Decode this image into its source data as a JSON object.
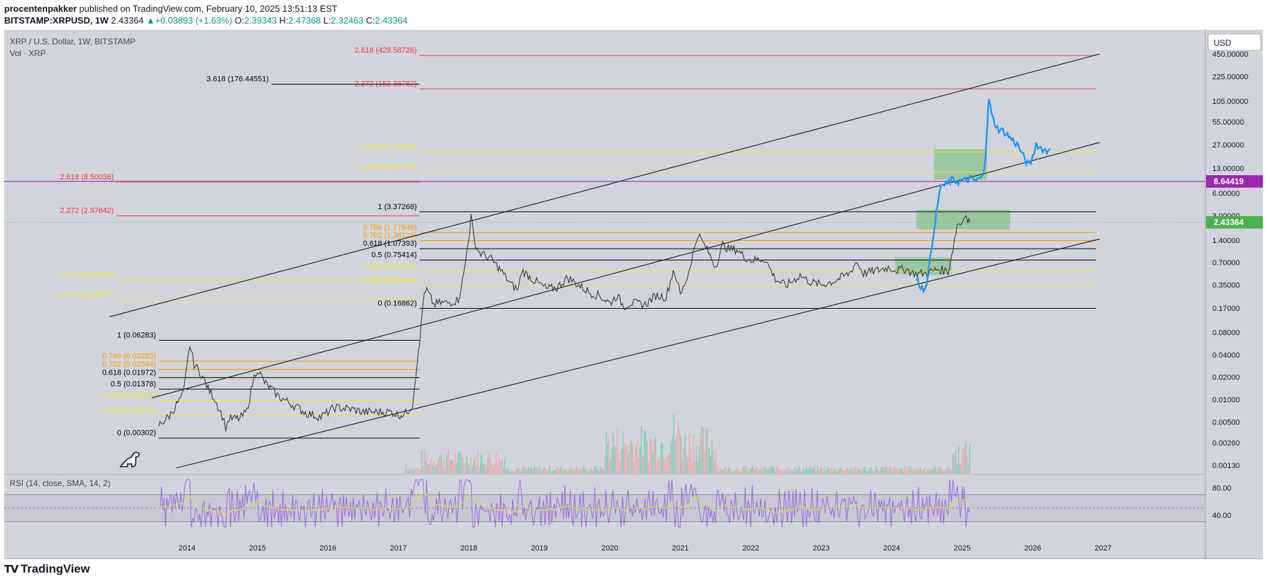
{
  "header": {
    "author": "procentenpakker",
    "published_text": "published on TradingView.com, February 10, 2025 13:51:13 EST",
    "symbol": "BITSTAMP:XRPUSD, 1W",
    "last": "2.43364",
    "change": "▲+0.03893 (+1.63%)",
    "o_label": "O:",
    "o": "2.39343",
    "h_label": "H:",
    "h": "2.47368",
    "l_label": "L:",
    "l": "2.32463",
    "c_label": "C:",
    "c": "2.43364"
  },
  "legend": {
    "title": "XRP / U.S. Dollar, 1W, BITSTAMP",
    "vol": "Vol · XRP",
    "rsi": "RSI (14, close, SMA, 14, 2)"
  },
  "currency_button": "USD",
  "footer": {
    "brand": "TradingView"
  },
  "colors": {
    "background": "#d1d4dc",
    "candle": "#3a3a3a",
    "projection": "#2196f3",
    "red_fib": "#f23645",
    "orange_fib": "#ff9800",
    "yellow_fib": "#f5e63c",
    "box": "#8ac28d",
    "rsi": "#9c6ade",
    "rsi_ma": "#e0e03a",
    "price_badge": "#4caf50",
    "level_badge": "#9c27b0"
  },
  "chart_data": {
    "type": "candlestick",
    "scale": "log",
    "timeframe": "1W",
    "x_ticks": [
      "2014",
      "2015",
      "2016",
      "2017",
      "2018",
      "2019",
      "2020",
      "2021",
      "2022",
      "2023",
      "2024",
      "2025",
      "2026",
      "2027"
    ],
    "y_ticks": [
      "450.00000",
      "225.00000",
      "105.00000",
      "55.00000",
      "27.00000",
      "13.00000",
      "6.00000",
      "3.00000",
      "1.40000",
      "0.70000",
      "0.35000",
      "0.17000",
      "0.08000",
      "0.04000",
      "0.02000",
      "0.01000",
      "0.00500",
      "0.00260",
      "0.00130"
    ],
    "last_price_label": "2.43364",
    "level_label": "8.64419",
    "price_path": [
      [
        2013.6,
        0.0045
      ],
      [
        2013.75,
        0.006
      ],
      [
        2013.85,
        0.0085
      ],
      [
        2013.95,
        0.012
      ],
      [
        2014.0,
        0.028
      ],
      [
        2014.04,
        0.055
      ],
      [
        2014.1,
        0.03
      ],
      [
        2014.2,
        0.022
      ],
      [
        2014.3,
        0.014
      ],
      [
        2014.4,
        0.01
      ],
      [
        2014.5,
        0.006
      ],
      [
        2014.55,
        0.0042
      ],
      [
        2014.6,
        0.0055
      ],
      [
        2014.75,
        0.0055
      ],
      [
        2014.85,
        0.007
      ],
      [
        2014.95,
        0.02
      ],
      [
        2015.0,
        0.026
      ],
      [
        2015.1,
        0.017
      ],
      [
        2015.3,
        0.011
      ],
      [
        2015.5,
        0.0085
      ],
      [
        2015.7,
        0.0065
      ],
      [
        2015.9,
        0.0058
      ],
      [
        2016.1,
        0.0078
      ],
      [
        2016.3,
        0.0075
      ],
      [
        2016.5,
        0.0068
      ],
      [
        2016.7,
        0.0068
      ],
      [
        2016.9,
        0.0068
      ],
      [
        2017.0,
        0.0062
      ],
      [
        2017.1,
        0.0065
      ],
      [
        2017.2,
        0.0085
      ],
      [
        2017.24,
        0.02
      ],
      [
        2017.3,
        0.055
      ],
      [
        2017.35,
        0.22
      ],
      [
        2017.4,
        0.3
      ],
      [
        2017.5,
        0.19
      ],
      [
        2017.6,
        0.2
      ],
      [
        2017.7,
        0.2
      ],
      [
        2017.85,
        0.22
      ],
      [
        2017.93,
        0.5
      ],
      [
        2018.0,
        1.6
      ],
      [
        2018.03,
        2.9
      ],
      [
        2018.08,
        1.3
      ],
      [
        2018.15,
        0.95
      ],
      [
        2018.3,
        0.8
      ],
      [
        2018.45,
        0.55
      ],
      [
        2018.6,
        0.35
      ],
      [
        2018.7,
        0.3
      ],
      [
        2018.75,
        0.55
      ],
      [
        2018.9,
        0.42
      ],
      [
        2019.1,
        0.31
      ],
      [
        2019.25,
        0.32
      ],
      [
        2019.4,
        0.44
      ],
      [
        2019.5,
        0.38
      ],
      [
        2019.7,
        0.28
      ],
      [
        2019.85,
        0.25
      ],
      [
        2020.0,
        0.2
      ],
      [
        2020.1,
        0.25
      ],
      [
        2020.2,
        0.18
      ],
      [
        2020.3,
        0.2
      ],
      [
        2020.5,
        0.19
      ],
      [
        2020.65,
        0.25
      ],
      [
        2020.8,
        0.24
      ],
      [
        2020.9,
        0.55
      ],
      [
        2020.95,
        0.42
      ],
      [
        2021.0,
        0.25
      ],
      [
        2021.1,
        0.45
      ],
      [
        2021.25,
        1.7
      ],
      [
        2021.3,
        1.4
      ],
      [
        2021.4,
        0.95
      ],
      [
        2021.5,
        0.62
      ],
      [
        2021.6,
        1.2
      ],
      [
        2021.7,
        1.05
      ],
      [
        2021.8,
        1.05
      ],
      [
        2021.9,
        0.85
      ],
      [
        2022.0,
        0.75
      ],
      [
        2022.2,
        0.78
      ],
      [
        2022.35,
        0.42
      ],
      [
        2022.5,
        0.34
      ],
      [
        2022.7,
        0.47
      ],
      [
        2022.85,
        0.38
      ],
      [
        2023.0,
        0.35
      ],
      [
        2023.2,
        0.4
      ],
      [
        2023.4,
        0.5
      ],
      [
        2023.5,
        0.72
      ],
      [
        2023.6,
        0.5
      ],
      [
        2023.8,
        0.55
      ],
      [
        2023.95,
        0.6
      ],
      [
        2024.1,
        0.55
      ],
      [
        2024.2,
        0.58
      ],
      [
        2024.3,
        0.5
      ],
      [
        2024.5,
        0.5
      ],
      [
        2024.65,
        0.57
      ],
      [
        2024.8,
        0.53
      ],
      [
        2024.87,
        1.1
      ],
      [
        2024.93,
        2.3
      ],
      [
        2025.0,
        2.4
      ],
      [
        2025.03,
        3.2
      ],
      [
        2025.08,
        2.6
      ],
      [
        2025.11,
        2.43
      ]
    ],
    "projection_path": [
      [
        2024.35,
        0.42
      ],
      [
        2024.45,
        0.3
      ],
      [
        2024.5,
        0.4
      ],
      [
        2024.55,
        0.8
      ],
      [
        2024.6,
        2.0
      ],
      [
        2024.65,
        4.0
      ],
      [
        2024.7,
        8.0
      ],
      [
        2024.75,
        7.5
      ],
      [
        2024.85,
        9.0
      ],
      [
        2025.0,
        8.5
      ],
      [
        2025.1,
        9.5
      ],
      [
        2025.2,
        8.8
      ],
      [
        2025.3,
        10.0
      ],
      [
        2025.33,
        20
      ],
      [
        2025.36,
        60
      ],
      [
        2025.38,
        115
      ],
      [
        2025.42,
        65
      ],
      [
        2025.5,
        45
      ],
      [
        2025.6,
        40
      ],
      [
        2025.7,
        32
      ],
      [
        2025.8,
        26
      ],
      [
        2025.85,
        20
      ],
      [
        2025.95,
        14
      ],
      [
        2026.0,
        18
      ],
      [
        2026.05,
        28
      ],
      [
        2026.1,
        25
      ],
      [
        2026.2,
        22
      ],
      [
        2026.25,
        24
      ]
    ],
    "fib_sets": [
      {
        "x0": 2013.6,
        "x1": 2017.3,
        "levels": [
          {
            "label": "1 (0.06283)",
            "v": 0.06283,
            "color": "#000000"
          },
          {
            "label": "0.786 (0.03283)",
            "v": 0.03283,
            "color": "#ff9800"
          },
          {
            "label": "0.702 (0.02544)",
            "v": 0.02544,
            "color": "#ff9800"
          },
          {
            "label": "0.618 (0.01972)",
            "v": 0.01972,
            "color": "#000000"
          },
          {
            "label": "0.5 (0.01378)",
            "v": 0.01378,
            "color": "#000000"
          },
          {
            "label": "0.382 (0.00963)",
            "v": 0.00963,
            "color": "#f5e63c"
          },
          {
            "label": "0.236 (0.00618)",
            "v": 0.00618,
            "color": "#f5e63c"
          },
          {
            "label": "0 (0.00302)",
            "v": 0.00302,
            "color": "#000000"
          }
        ]
      },
      {
        "x0": 2017.3,
        "x1": 2026.9,
        "levels": [
          {
            "label": "1 (3.37268)",
            "v": 3.37268,
            "color": "#000000"
          },
          {
            "label": "0.786 (1.77645)",
            "v": 1.77645,
            "color": "#ff9800"
          },
          {
            "label": "0.702 (1.38123)",
            "v": 1.38123,
            "color": "#ff9800"
          },
          {
            "label": "0.618 (1.07393)",
            "v": 1.07393,
            "color": "#000000"
          },
          {
            "label": "0.5 (0.75414)",
            "v": 0.75414,
            "color": "#000000"
          },
          {
            "label": "0.382 (0.52958)",
            "v": 0.52958,
            "color": "#f5e63c"
          },
          {
            "label": "0.236 (0.34196)",
            "v": 0.34196,
            "color": "#f5e63c"
          },
          {
            "label": "0 (0.16862)",
            "v": 0.16862,
            "color": "#000000"
          }
        ]
      },
      {
        "x0": 2017.3,
        "x1": 2026.9,
        "levels": [
          {
            "label": "2.618 (429.58726)",
            "v": 429.58726,
            "color": "#f23645"
          },
          {
            "label": "2.272 (152.36782)",
            "v": 152.36782,
            "color": "#f23645"
          },
          {
            "label": "1.618 (21.47910)",
            "v": 21.4791,
            "color": "#f5e63c"
          },
          {
            "label": "1.414 (11.65748)",
            "v": 11.65748,
            "color": "#f5e63c"
          }
        ]
      },
      {
        "x0": 2015.2,
        "x1": 2017.3,
        "levels": [
          {
            "label": "3.618 (176.44551)",
            "v": 176.44551,
            "color": "#000000"
          }
        ]
      },
      {
        "x0": 2013.0,
        "x1": 2017.3,
        "levels": [
          {
            "label": "2.618 (8.50036)",
            "v": 8.50036,
            "color": "#f23645"
          },
          {
            "label": "2.272 (2.97642)",
            "v": 2.97642,
            "color": "#f23645"
          },
          {
            "label": "1.618 (0.40950)",
            "v": 0.4095,
            "color": "#f5e63c"
          },
          {
            "label": "1.414 (0.22057)",
            "v": 0.22057,
            "color": "#f5e63c"
          }
        ]
      }
    ],
    "channel_lines": [
      [
        [
          2012.9,
          0.13
        ],
        [
          2026.95,
          450
        ]
      ],
      [
        [
          2013.5,
          0.0105
        ],
        [
          2026.95,
          29
        ]
      ],
      [
        [
          2013.85,
          0.0012
        ],
        [
          2026.95,
          1.45
        ]
      ]
    ],
    "boxes": [
      [
        2024.05,
        2024.85,
        0.48,
        0.82
      ],
      [
        2024.35,
        2025.68,
        1.95,
        3.6
      ],
      [
        2024.6,
        2025.35,
        9.2,
        23.5
      ]
    ],
    "purple_line": 8.64419,
    "rsi": {
      "y_ticks": [
        "80.00",
        "40.00"
      ],
      "bands": [
        70,
        50,
        30
      ]
    }
  }
}
